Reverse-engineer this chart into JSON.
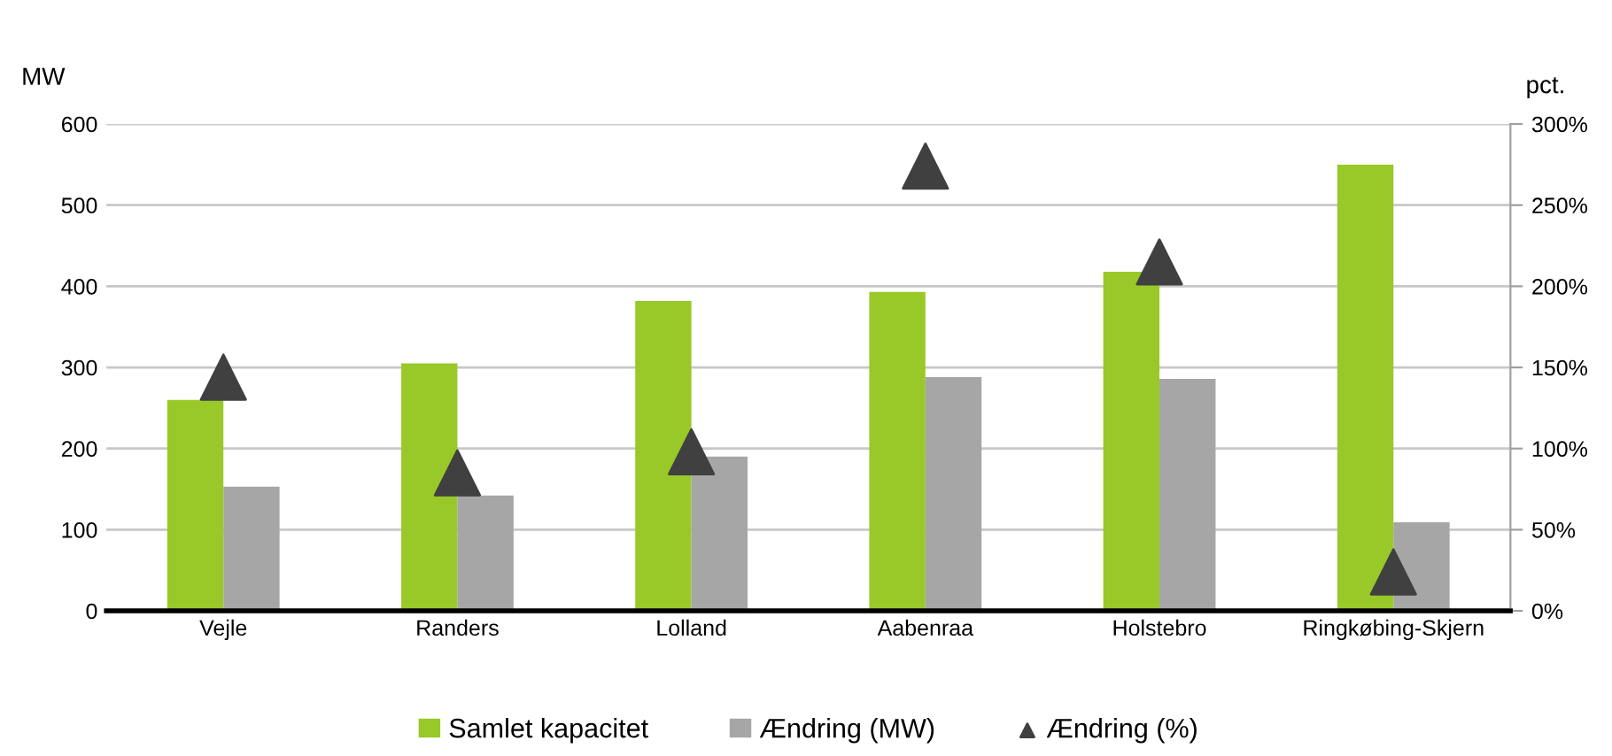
{
  "chart_data": {
    "type": "bar",
    "categories": [
      "Vejle",
      "Randers",
      "Lolland",
      "Aabenraa",
      "Holstebro",
      "Ringkøbing-Skjern"
    ],
    "series": [
      {
        "name": "Samlet kapacitet",
        "color": "#99c928",
        "values": [
          260,
          305,
          382,
          393,
          418,
          550
        ]
      },
      {
        "name": "Ændring (MW)",
        "color": "#a6a6a6",
        "values": [
          153,
          142,
          190,
          288,
          286,
          109
        ]
      },
      {
        "name": "Ændring (%)",
        "type": "scatter",
        "axis": "y2",
        "color": "#404040",
        "values": [
          144,
          85,
          98,
          274,
          215,
          24
        ]
      }
    ],
    "ylabel": "MW",
    "y2label": "pct.",
    "ylim": [
      0,
      600
    ],
    "yticks": [
      0,
      100,
      200,
      300,
      400,
      500,
      600
    ],
    "y2lim": [
      0,
      300
    ],
    "y2ticks": [
      {
        "value": 0,
        "label": "0%"
      },
      {
        "value": 50,
        "label": "50%"
      },
      {
        "value": 100,
        "label": "100%"
      },
      {
        "value": 150,
        "label": "150%"
      },
      {
        "value": 200,
        "label": "200%"
      },
      {
        "value": 250,
        "label": "250%"
      },
      {
        "value": 300,
        "label": "300%"
      }
    ],
    "grid": "y",
    "legend": "bottom",
    "marker": "triangle"
  }
}
